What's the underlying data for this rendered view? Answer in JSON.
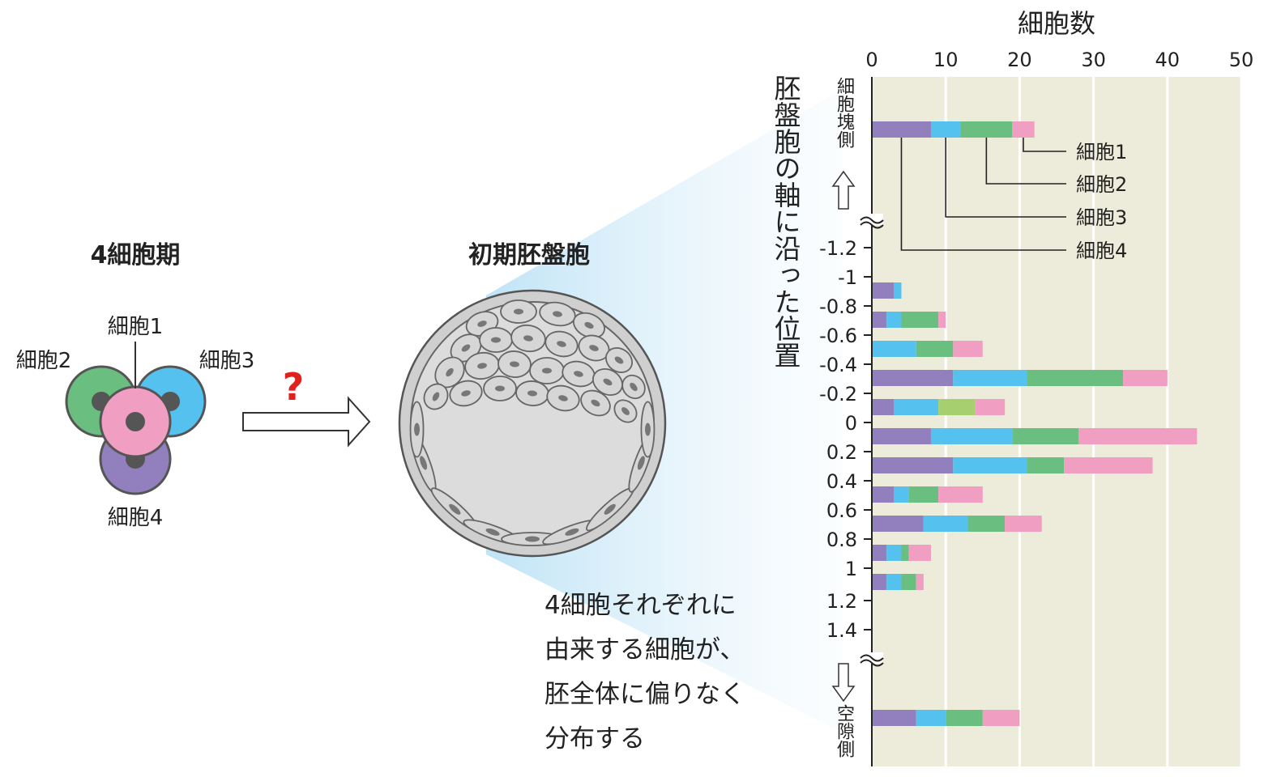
{
  "left": {
    "title": "4細胞期",
    "cell1": "細胞1",
    "cell2": "細胞2",
    "cell3": "細胞3",
    "cell4": "細胞4",
    "question": "?"
  },
  "middle": {
    "title": "初期胚盤胞"
  },
  "caption": {
    "line1": "4細胞それぞれに",
    "line2": "由来する細胞が、",
    "line3": "胚全体に偏りなく",
    "line4": "分布する"
  },
  "colors": {
    "cell1": "#f09ec2",
    "cell2": "#6abf80",
    "cell3": "#55c1ee",
    "cell4": "#9180bd",
    "extra": "#a6d070",
    "plot_bg": "#edebd9"
  },
  "chart_data": {
    "type": "bar",
    "orientation": "horizontal",
    "stacked": true,
    "title": "細胞数",
    "ylabel": "胚盤胞の軸に沿った位置",
    "top_end_label": "細胞塊側",
    "bottom_end_label": "空隙側",
    "xlim": [
      0,
      50
    ],
    "x_ticks": [
      "0",
      "10",
      "20",
      "30",
      "40",
      "50"
    ],
    "y_ticks": [
      "-1.2",
      "-1",
      "-0.8",
      "-0.6",
      "-0.4",
      "-0.2",
      "0",
      "0.2",
      "0.4",
      "0.6",
      "0.8",
      "1",
      "1.2",
      "1.4"
    ],
    "legend": [
      "細胞1",
      "細胞2",
      "細胞3",
      "細胞4"
    ],
    "stack_order": [
      "細胞4",
      "細胞3",
      "細胞2",
      "extra",
      "細胞1"
    ],
    "rows": [
      {
        "y": "細胞塊側",
        "values": {
          "細胞4": 8,
          "細胞3": 4,
          "細胞2": 7,
          "extra": 0,
          "細胞1": 3
        }
      },
      {
        "y": "-1",
        "values": {
          "細胞4": 3,
          "細胞3": 1,
          "細胞2": 0,
          "extra": 0,
          "細胞1": 0
        }
      },
      {
        "y": "-0.8",
        "values": {
          "細胞4": 2,
          "細胞3": 2,
          "細胞2": 5,
          "extra": 0,
          "細胞1": 1
        }
      },
      {
        "y": "-0.6",
        "values": {
          "細胞4": 0,
          "細胞3": 6,
          "細胞2": 5,
          "extra": 0,
          "細胞1": 4
        }
      },
      {
        "y": "-0.4",
        "values": {
          "細胞4": 11,
          "細胞3": 10,
          "細胞2": 13,
          "extra": 0,
          "細胞1": 6
        }
      },
      {
        "y": "-0.2",
        "values": {
          "細胞4": 3,
          "細胞3": 6,
          "細胞2": 0,
          "extra": 5,
          "細胞1": 4
        }
      },
      {
        "y": "0",
        "values": {
          "細胞4": 8,
          "細胞3": 11,
          "細胞2": 9,
          "extra": 0,
          "細胞1": 16
        }
      },
      {
        "y": "0.2",
        "values": {
          "細胞4": 11,
          "細胞3": 10,
          "細胞2": 5,
          "extra": 0,
          "細胞1": 12
        }
      },
      {
        "y": "0.4",
        "values": {
          "細胞4": 3,
          "細胞3": 2,
          "細胞2": 4,
          "extra": 0,
          "細胞1": 6
        }
      },
      {
        "y": "0.6",
        "values": {
          "細胞4": 7,
          "細胞3": 6,
          "細胞2": 5,
          "extra": 0,
          "細胞1": 5
        }
      },
      {
        "y": "0.8",
        "values": {
          "細胞4": 2,
          "細胞3": 2,
          "細胞2": 1,
          "extra": 0,
          "細胞1": 3
        }
      },
      {
        "y": "1",
        "values": {
          "細胞4": 2,
          "細胞3": 2,
          "細胞2": 2,
          "extra": 0,
          "細胞1": 1
        }
      },
      {
        "y": "空隙側",
        "values": {
          "細胞4": 6,
          "細胞3": 4,
          "細胞2": 5,
          "extra": 0,
          "細胞1": 5
        }
      }
    ]
  }
}
